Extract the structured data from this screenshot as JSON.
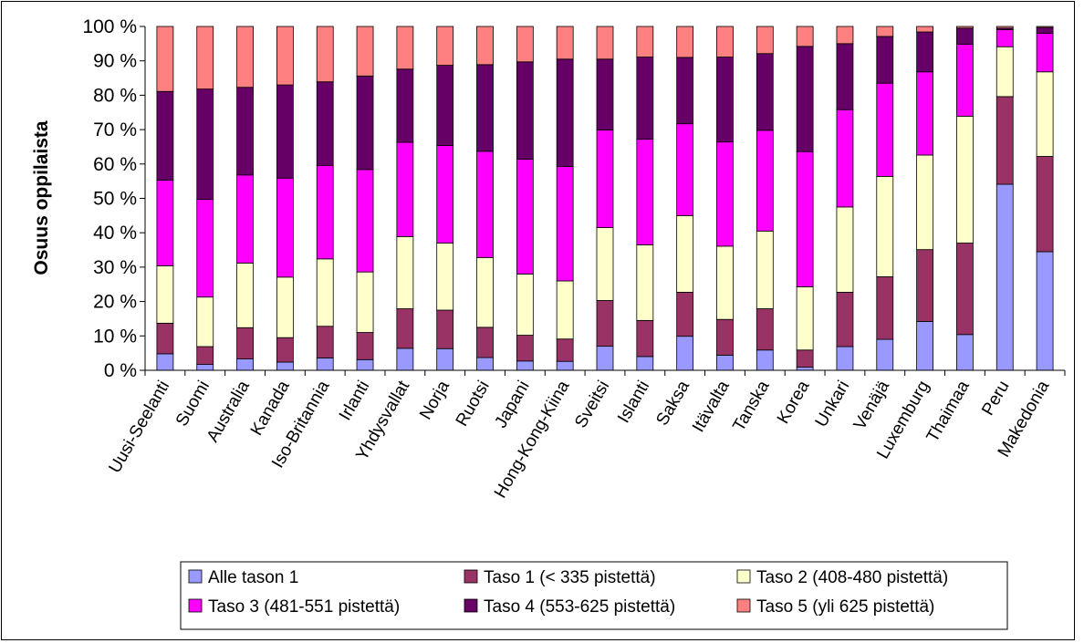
{
  "chart_data": {
    "type": "bar",
    "stacked": true,
    "percent": true,
    "ylabel": "Osuus oppilaista",
    "ylim": [
      0,
      100
    ],
    "yticks": [
      "0 %",
      "10 %",
      "20 %",
      "30 %",
      "40 %",
      "50 %",
      "60 %",
      "70 %",
      "80 %",
      "90 %",
      "100 %"
    ],
    "legend_position": "bottom",
    "grid": false,
    "categories": [
      "Uusi-Seelanti",
      "Suomi",
      "Australia",
      "Kanada",
      "Iso-Britannia",
      "Irlanti",
      "Yhdysvallat",
      "Norja",
      "Ruotsi",
      "Japani",
      "Hong-Kong-Kiina",
      "Sveitsi",
      "Islanti",
      "Saksa",
      "Itävalta",
      "Tanska",
      "Korea",
      "Unkari",
      "Venäjä",
      "Luxemburg",
      "Thaimaa",
      "Peru",
      "Makedonia"
    ],
    "series": [
      {
        "name": "Alle tason 1",
        "color": "#9999FF",
        "values": [
          4.8,
          1.7,
          3.3,
          2.4,
          3.6,
          3.1,
          6.4,
          6.3,
          3.7,
          2.7,
          2.6,
          7.0,
          4.0,
          9.9,
          4.4,
          5.9,
          0.9,
          6.9,
          9.0,
          14.2,
          10.4,
          54.1,
          34.5
        ]
      },
      {
        "name": "Taso 1 (< 335 pistettä)",
        "color": "#993366",
        "values": [
          8.9,
          5.2,
          9.1,
          7.1,
          9.2,
          7.9,
          11.5,
          11.2,
          8.8,
          7.5,
          6.5,
          13.3,
          10.5,
          12.8,
          10.4,
          12.0,
          5.0,
          15.8,
          18.2,
          20.9,
          26.6,
          25.5,
          27.7
        ]
      },
      {
        "name": "Taso 2 (408-480 pistettä)",
        "color": "#FFFFCC",
        "values": [
          16.7,
          14.4,
          18.8,
          17.6,
          19.6,
          17.6,
          21.0,
          19.5,
          20.3,
          17.8,
          16.9,
          21.2,
          22.0,
          22.3,
          21.3,
          22.6,
          18.4,
          24.8,
          29.2,
          27.5,
          36.9,
          14.5,
          24.6
        ]
      },
      {
        "name": "Taso 3 (481-551 pistettä)",
        "color": "#FF00FF",
        "values": [
          24.9,
          28.4,
          25.6,
          28.8,
          27.2,
          29.8,
          27.4,
          28.4,
          30.9,
          33.4,
          33.3,
          28.4,
          30.7,
          26.7,
          30.3,
          29.3,
          39.3,
          28.3,
          27.1,
          24.2,
          20.9,
          5.0,
          11.2
        ]
      },
      {
        "name": "Taso 4 (553-625 pistettä)",
        "color": "#660066",
        "values": [
          25.8,
          32.1,
          25.5,
          27.1,
          24.3,
          27.2,
          21.3,
          23.3,
          25.2,
          28.3,
          31.2,
          20.6,
          23.9,
          19.3,
          24.7,
          22.3,
          30.6,
          19.2,
          13.6,
          11.6,
          4.7,
          0.4,
          1.7
        ]
      },
      {
        "name": "Taso 5 (yli 625 pistettä)",
        "color": "#FF8080",
        "values": [
          18.9,
          18.2,
          17.7,
          17.0,
          16.1,
          14.4,
          12.4,
          11.3,
          11.1,
          10.3,
          9.5,
          9.5,
          8.9,
          9.0,
          8.9,
          7.9,
          5.8,
          5.0,
          2.9,
          1.6,
          0.5,
          0.5,
          0.3
        ]
      }
    ]
  }
}
